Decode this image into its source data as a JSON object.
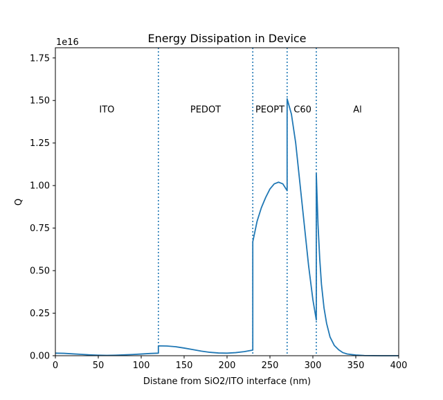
{
  "chart_data": {
    "type": "line",
    "title": "Energy Dissipation in Device",
    "xlabel": "Distane from SiO2/ITO interface (nm)",
    "ylabel": "Q",
    "y_scale_factor": "1e16",
    "xlim": [
      0,
      400
    ],
    "ylim": [
      0,
      1.81
    ],
    "xticks": [
      "0",
      "50",
      "100",
      "150",
      "200",
      "250",
      "300",
      "350",
      "400"
    ],
    "yticks": [
      "0.00",
      "0.25",
      "0.50",
      "0.75",
      "1.00",
      "1.25",
      "1.50",
      "1.75"
    ],
    "grid": false,
    "line_color": "#1f77b4",
    "boundaries": [
      120,
      230,
      270,
      304
    ],
    "boundary_style": "dotted",
    "regions": [
      {
        "label": "ITO",
        "x": 60
      },
      {
        "label": "PEDOT",
        "x": 175
      },
      {
        "label": "PEOPT",
        "x": 250
      },
      {
        "label": "C60",
        "x": 288
      },
      {
        "label": "Al",
        "x": 352
      }
    ],
    "series": [
      {
        "values_note": "y in units of 1e16",
        "x": [
          0,
          10,
          20,
          30,
          40,
          50,
          60,
          70,
          80,
          90,
          100,
          110,
          120,
          120,
          130,
          140,
          150,
          160,
          170,
          180,
          190,
          200,
          210,
          220,
          230,
          230,
          235,
          240,
          245,
          250,
          255,
          260,
          265,
          270,
          270,
          275,
          280,
          285,
          290,
          295,
          300,
          304,
          304,
          306,
          308,
          310,
          313,
          316,
          320,
          325,
          330,
          335,
          340,
          350,
          360,
          380,
          400
        ],
        "y": [
          0.015,
          0.014,
          0.011,
          0.008,
          0.005,
          0.003,
          0.002,
          0.003,
          0.005,
          0.007,
          0.01,
          0.013,
          0.015,
          0.058,
          0.057,
          0.053,
          0.045,
          0.036,
          0.027,
          0.02,
          0.016,
          0.015,
          0.018,
          0.024,
          0.033,
          0.67,
          0.79,
          0.87,
          0.93,
          0.98,
          1.01,
          1.02,
          1.01,
          0.97,
          1.51,
          1.42,
          1.25,
          1.01,
          0.77,
          0.53,
          0.33,
          0.21,
          1.07,
          0.77,
          0.57,
          0.42,
          0.28,
          0.19,
          0.11,
          0.06,
          0.035,
          0.018,
          0.01,
          0.004,
          0.001,
          0.0,
          0.0
        ]
      }
    ]
  }
}
